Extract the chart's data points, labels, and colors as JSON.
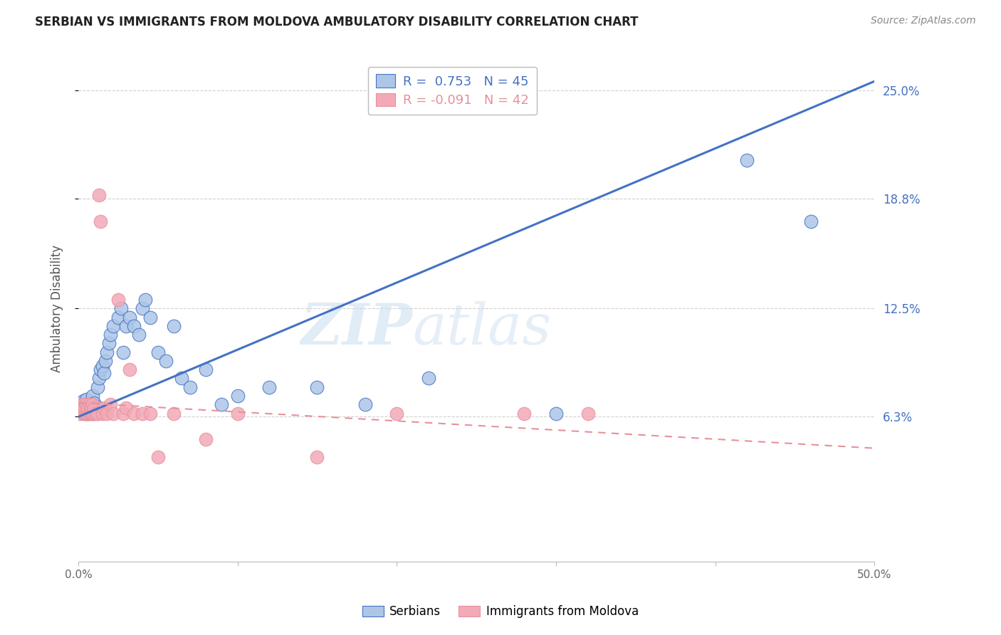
{
  "title": "SERBIAN VS IMMIGRANTS FROM MOLDOVA AMBULATORY DISABILITY CORRELATION CHART",
  "source": "Source: ZipAtlas.com",
  "ylabel": "Ambulatory Disability",
  "ytick_labels": [
    "25.0%",
    "18.8%",
    "12.5%",
    "6.3%"
  ],
  "ytick_values": [
    0.25,
    0.188,
    0.125,
    0.063
  ],
  "xlim": [
    0.0,
    0.5
  ],
  "ylim": [
    -0.02,
    0.27
  ],
  "watermark_zip": "ZIP",
  "watermark_atlas": "atlas",
  "legend_serbian_r": "R =  0.753",
  "legend_serbian_n": "N = 45",
  "legend_moldova_r": "R = -0.091",
  "legend_moldova_n": "N = 42",
  "serbian_color": "#adc6e8",
  "moldova_color": "#f2aab8",
  "serbian_line_color": "#4472c4",
  "moldova_line_color": "#e8909a",
  "background_color": "#ffffff",
  "grid_color": "#d0d0d0",
  "serbian_x": [
    0.002,
    0.003,
    0.004,
    0.005,
    0.006,
    0.007,
    0.008,
    0.009,
    0.01,
    0.011,
    0.012,
    0.013,
    0.014,
    0.015,
    0.016,
    0.017,
    0.018,
    0.019,
    0.02,
    0.022,
    0.025,
    0.027,
    0.028,
    0.03,
    0.032,
    0.035,
    0.038,
    0.04,
    0.042,
    0.045,
    0.05,
    0.055,
    0.06,
    0.065,
    0.07,
    0.08,
    0.09,
    0.1,
    0.12,
    0.15,
    0.18,
    0.22,
    0.3,
    0.42,
    0.46
  ],
  "serbian_y": [
    0.068,
    0.072,
    0.069,
    0.073,
    0.065,
    0.07,
    0.068,
    0.075,
    0.071,
    0.069,
    0.08,
    0.085,
    0.09,
    0.092,
    0.088,
    0.095,
    0.1,
    0.105,
    0.11,
    0.115,
    0.12,
    0.125,
    0.1,
    0.115,
    0.12,
    0.115,
    0.11,
    0.125,
    0.13,
    0.12,
    0.1,
    0.095,
    0.115,
    0.085,
    0.08,
    0.09,
    0.07,
    0.075,
    0.08,
    0.08,
    0.07,
    0.085,
    0.065,
    0.21,
    0.175
  ],
  "moldova_x": [
    0.001,
    0.002,
    0.003,
    0.003,
    0.004,
    0.004,
    0.005,
    0.005,
    0.006,
    0.006,
    0.007,
    0.007,
    0.008,
    0.008,
    0.009,
    0.009,
    0.01,
    0.01,
    0.011,
    0.012,
    0.013,
    0.014,
    0.015,
    0.016,
    0.018,
    0.02,
    0.022,
    0.025,
    0.028,
    0.03,
    0.032,
    0.035,
    0.04,
    0.045,
    0.05,
    0.06,
    0.08,
    0.1,
    0.15,
    0.2,
    0.28,
    0.32
  ],
  "moldova_y": [
    0.065,
    0.068,
    0.065,
    0.07,
    0.065,
    0.068,
    0.065,
    0.07,
    0.065,
    0.068,
    0.065,
    0.07,
    0.065,
    0.068,
    0.065,
    0.07,
    0.065,
    0.068,
    0.065,
    0.065,
    0.19,
    0.175,
    0.065,
    0.068,
    0.065,
    0.07,
    0.065,
    0.13,
    0.065,
    0.068,
    0.09,
    0.065,
    0.065,
    0.065,
    0.04,
    0.065,
    0.05,
    0.065,
    0.04,
    0.065,
    0.065,
    0.065
  ],
  "serbian_line_x": [
    0.0,
    0.5
  ],
  "serbian_line_y": [
    0.063,
    0.255
  ],
  "moldova_line_x": [
    0.0,
    0.5
  ],
  "moldova_line_y": [
    0.071,
    0.045
  ]
}
